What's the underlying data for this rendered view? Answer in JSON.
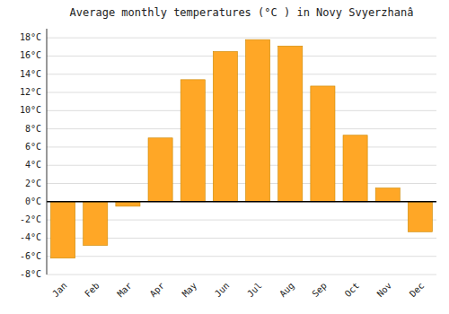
{
  "chart_data": {
    "type": "bar",
    "title": "Average monthly temperatures (°C ) in Novy Svyerzhanâ",
    "categories": [
      "Jan",
      "Feb",
      "Mar",
      "Apr",
      "May",
      "Jun",
      "Jul",
      "Aug",
      "Sep",
      "Oct",
      "Nov",
      "Dec"
    ],
    "values": [
      -6.2,
      -4.8,
      -0.5,
      7.0,
      13.4,
      16.5,
      17.8,
      17.1,
      12.7,
      7.3,
      1.5,
      -3.3
    ],
    "color": "#FFA726",
    "ylim": [
      -8,
      19
    ],
    "yticks": [
      {
        "value": -8,
        "label": "-8°C"
      },
      {
        "value": -6,
        "label": "-6°C"
      },
      {
        "value": -4,
        "label": "-4°C"
      },
      {
        "value": -2,
        "label": "-2°C"
      },
      {
        "value": 0,
        "label": "0°C"
      },
      {
        "value": 2,
        "label": "2°C"
      },
      {
        "value": 4,
        "label": "4°C"
      },
      {
        "value": 6,
        "label": "6°C"
      },
      {
        "value": 8,
        "label": "8°C"
      },
      {
        "value": 10,
        "label": "10°C"
      },
      {
        "value": 12,
        "label": "12°C"
      },
      {
        "value": 14,
        "label": "14°C"
      },
      {
        "value": 16,
        "label": "16°C"
      },
      {
        "value": 18,
        "label": "18°C"
      }
    ],
    "grid": true
  }
}
